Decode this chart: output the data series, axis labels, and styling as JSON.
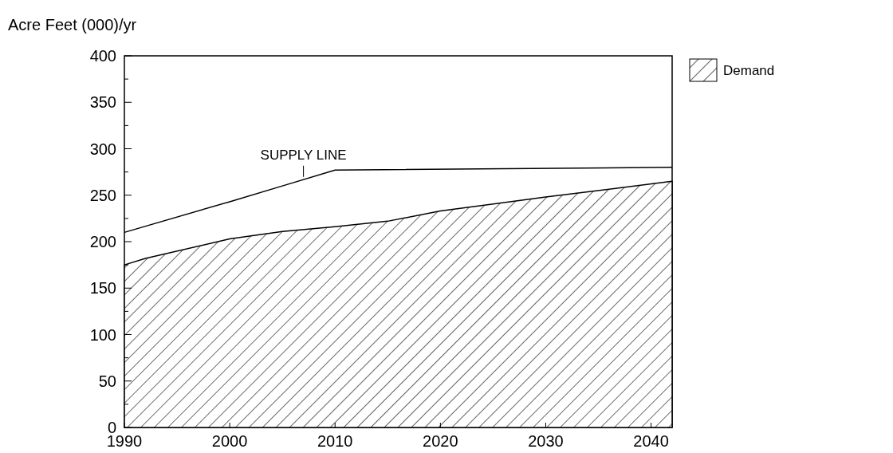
{
  "chart_data": {
    "type": "area",
    "ylabel": "Acre Feet (000)/yr",
    "xlim": [
      1990,
      2042
    ],
    "xticks": [
      1990,
      2000,
      2010,
      2020,
      2030,
      2040
    ],
    "ylim": [
      0,
      400
    ],
    "yticks": [
      0,
      {
        "value": 25,
        "label": null
      },
      50,
      {
        "value": 75,
        "label": null
      },
      100,
      {
        "value": 125,
        "label": null
      },
      150,
      {
        "value": 175,
        "label": null
      },
      200,
      {
        "value": 225,
        "label": null
      },
      250,
      {
        "value": 275,
        "label": null
      },
      300,
      {
        "value": 325,
        "label": null
      },
      350,
      {
        "value": 375,
        "label": null
      },
      400
    ],
    "grid": false,
    "legend": "top right",
    "series": [
      {
        "name": "Demand",
        "color": "#000000",
        "x": [
          1990,
          1992,
          2000,
          2005,
          2010,
          2015,
          2020,
          2030,
          2042
        ],
        "values": [
          175,
          182,
          203,
          211,
          216,
          222,
          233,
          248,
          265
        ]
      },
      {
        "type": "line",
        "color": "#000000",
        "x": [
          1990,
          2000,
          2005,
          2010,
          2042
        ],
        "values": [
          210,
          243,
          260,
          277,
          280
        ]
      }
    ],
    "annotations": [
      {
        "text": "SUPPLY LINE",
        "x": 2007,
        "y": 268
      }
    ]
  }
}
